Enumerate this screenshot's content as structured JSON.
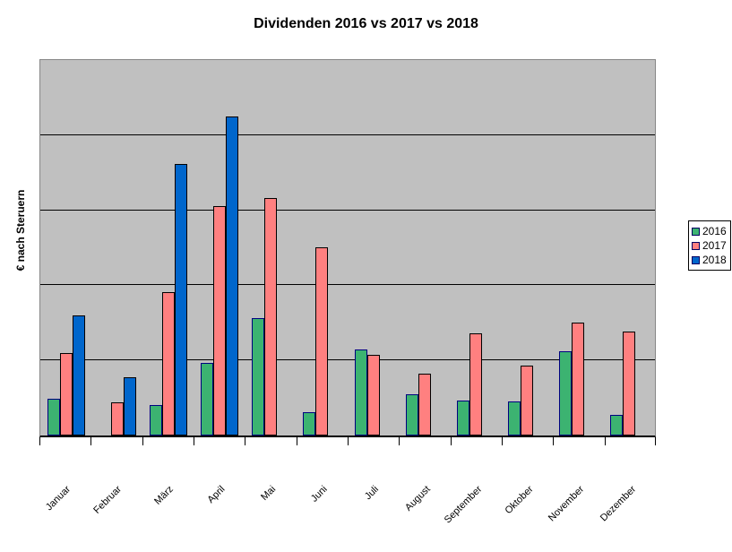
{
  "chart_data": {
    "type": "bar",
    "title": "Dividenden 2016 vs 2017 vs 2018",
    "xlabel": "",
    "ylabel": "€ nach Steruern",
    "categories": [
      "Januar",
      "Februar",
      "März",
      "April",
      "Mai",
      "Juni",
      "Juli",
      "August",
      "September",
      "Oktober",
      "November",
      "Dezember"
    ],
    "series": [
      {
        "name": "2016",
        "color": "#3CB371",
        "border_color": "#000080",
        "values": [
          49,
          null,
          41,
          97,
          156,
          31,
          114,
          55,
          47,
          45,
          112,
          28
        ]
      },
      {
        "name": "2017",
        "color": "#FF8080",
        "border_color": "#000000",
        "values": [
          110,
          44,
          191,
          306,
          316,
          251,
          108,
          82,
          136,
          93,
          150,
          139
        ]
      },
      {
        "name": "2018",
        "color": "#0066CC",
        "border_color": "#000000",
        "values": [
          160,
          78,
          361,
          425,
          null,
          null,
          null,
          null,
          null,
          null,
          null,
          null
        ]
      }
    ],
    "ylim": [
      0,
      500
    ],
    "gridline_interval": 100,
    "y_tick_labels_visible": false,
    "grid": true,
    "legend_position": "right",
    "plot_background": "#C0C0C0",
    "gridline_color": "#000000",
    "axis_line_color": "#000000"
  }
}
